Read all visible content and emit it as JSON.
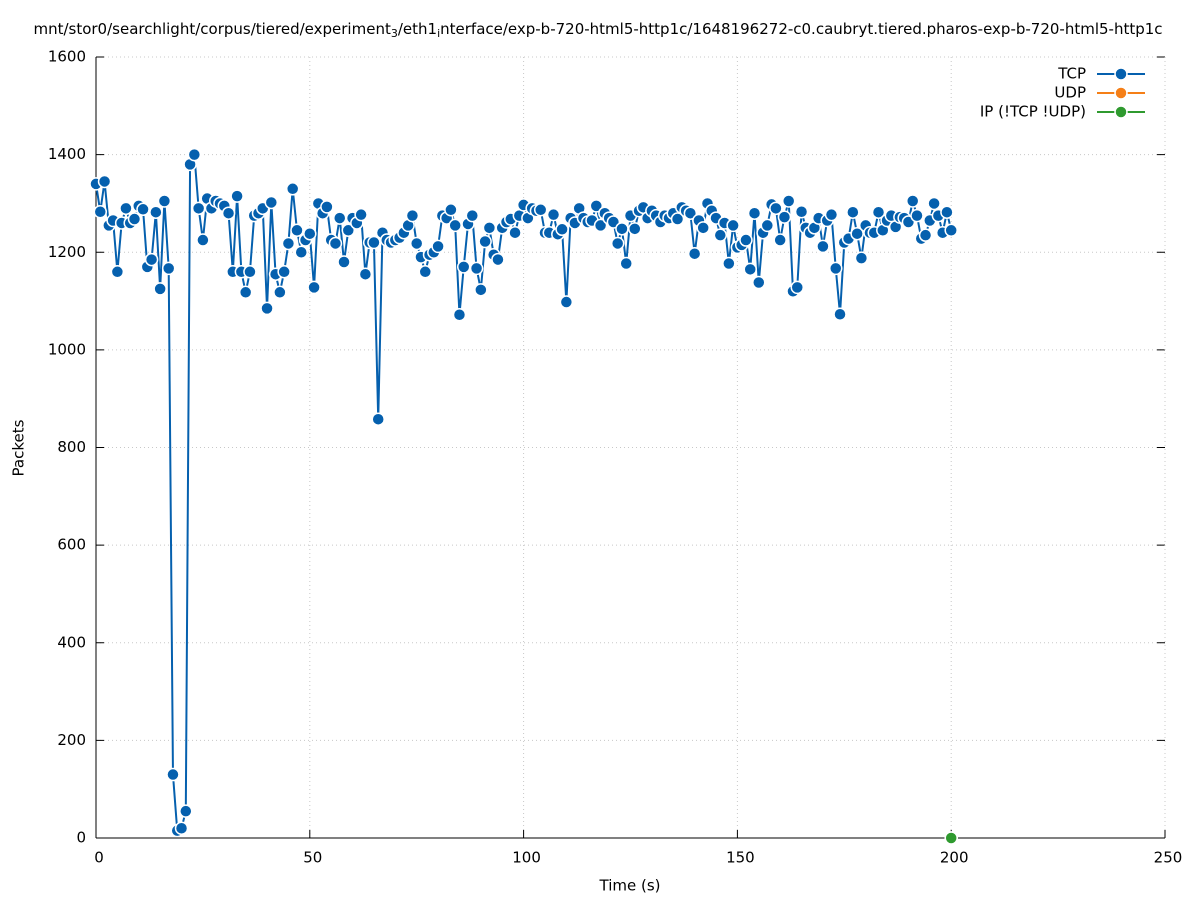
{
  "chart_data": {
    "type": "line",
    "title_parts": [
      "mnt/stor0/searchlight/corpus/tiered/experiment",
      "3",
      "/eth1",
      "i",
      "nterface/exp-b-720-html5-http1c/1648196272-c0.caubryt.tiered.pharos-exp-b-720-html5-http1c"
    ],
    "x_label": "Time (s)",
    "y_label": "Packets",
    "xlim": [
      0,
      250
    ],
    "xticks": [
      0,
      50,
      100,
      150,
      200,
      250
    ],
    "ylim": [
      0,
      1600
    ],
    "yticks": [
      0,
      200,
      400,
      600,
      800,
      1000,
      1200,
      1400,
      1600
    ],
    "grid": true,
    "legend": "top-right",
    "series": [
      {
        "name": "TCP",
        "color": "#0560ae",
        "x": [
          0,
          1,
          2,
          3,
          4,
          5,
          6,
          7,
          8,
          9,
          10,
          11,
          12,
          13,
          14,
          15,
          16,
          17,
          18,
          19,
          20,
          21,
          22,
          23,
          24,
          25,
          26,
          27,
          28,
          29,
          30,
          31,
          32,
          33,
          34,
          35,
          36,
          37,
          38,
          39,
          40,
          41,
          42,
          43,
          44,
          45,
          46,
          47,
          48,
          49,
          50,
          51,
          52,
          53,
          54,
          55,
          56,
          57,
          58,
          59,
          60,
          61,
          62,
          63,
          64,
          65,
          66,
          67,
          68,
          69,
          70,
          71,
          72,
          73,
          74,
          75,
          76,
          77,
          78,
          79,
          80,
          81,
          82,
          83,
          84,
          85,
          86,
          87,
          88,
          89,
          90,
          91,
          92,
          93,
          94,
          95,
          96,
          97,
          98,
          99,
          100,
          101,
          102,
          103,
          104,
          105,
          106,
          107,
          108,
          109,
          110,
          111,
          112,
          113,
          114,
          115,
          116,
          117,
          118,
          119,
          120,
          121,
          122,
          123,
          124,
          125,
          126,
          127,
          128,
          129,
          130,
          131,
          132,
          133,
          134,
          135,
          136,
          137,
          138,
          139,
          140,
          141,
          142,
          143,
          144,
          145,
          146,
          147,
          148,
          149,
          150,
          151,
          152,
          153,
          154,
          155,
          156,
          157,
          158,
          159,
          160,
          161,
          162,
          163,
          164,
          165,
          166,
          167,
          168,
          169,
          170,
          171,
          172,
          173,
          174,
          175,
          176,
          177,
          178,
          179,
          180,
          181,
          182,
          183,
          184,
          185,
          186,
          187,
          188,
          189,
          190,
          191,
          192,
          193,
          194,
          195,
          196,
          197,
          198,
          199,
          200
        ],
        "values": [
          1340,
          1283,
          1345,
          1255,
          1265,
          1160,
          1260,
          1290,
          1260,
          1268,
          1295,
          1288,
          1170,
          1185,
          1282,
          1125,
          1305,
          1167,
          130,
          15,
          20,
          55,
          1380,
          1400,
          1290,
          1225,
          1310,
          1290,
          1305,
          1300,
          1295,
          1280,
          1160,
          1315,
          1160,
          1118,
          1160,
          1275,
          1280,
          1290,
          1085,
          1302,
          1155,
          1118,
          1160,
          1218,
          1330,
          1245,
          1200,
          1225,
          1238,
          1128,
          1300,
          1280,
          1293,
          1225,
          1218,
          1270,
          1180,
          1245,
          1270,
          1260,
          1277,
          1155,
          1220,
          1220,
          858,
          1240,
          1225,
          1220,
          1225,
          1230,
          1240,
          1255,
          1275,
          1218,
          1190,
          1160,
          1195,
          1200,
          1212,
          1275,
          1270,
          1287,
          1255,
          1072,
          1170,
          1258,
          1275,
          1167,
          1123,
          1222,
          1250,
          1195,
          1185,
          1250,
          1262,
          1268,
          1240,
          1275,
          1297,
          1270,
          1290,
          1285,
          1287,
          1240,
          1240,
          1277,
          1237,
          1247,
          1098,
          1270,
          1260,
          1290,
          1270,
          1262,
          1265,
          1295,
          1255,
          1280,
          1270,
          1262,
          1218,
          1248,
          1177,
          1275,
          1248,
          1285,
          1292,
          1270,
          1285,
          1275,
          1262,
          1275,
          1270,
          1280,
          1268,
          1292,
          1285,
          1280,
          1197,
          1265,
          1250,
          1300,
          1285,
          1270,
          1235,
          1260,
          1177,
          1255,
          1210,
          1215,
          1225,
          1165,
          1280,
          1138,
          1240,
          1255,
          1298,
          1290,
          1225,
          1272,
          1305,
          1120,
          1128,
          1283,
          1250,
          1240,
          1250,
          1270,
          1212,
          1265,
          1277,
          1167,
          1073,
          1220,
          1228,
          1282,
          1238,
          1188,
          1255,
          1240,
          1240,
          1282,
          1245,
          1265,
          1275,
          1252,
          1272,
          1270,
          1262,
          1305,
          1275,
          1228,
          1235,
          1265,
          1300,
          1275,
          1240,
          1282,
          1245
        ]
      },
      {
        "name": "UDP",
        "color": "#f57f17",
        "x": [
          200
        ],
        "values": [
          0
        ]
      },
      {
        "name": "IP (!TCP  !UDP)",
        "color": "#2f9a2f",
        "x": [
          200
        ],
        "values": [
          0
        ]
      }
    ]
  }
}
